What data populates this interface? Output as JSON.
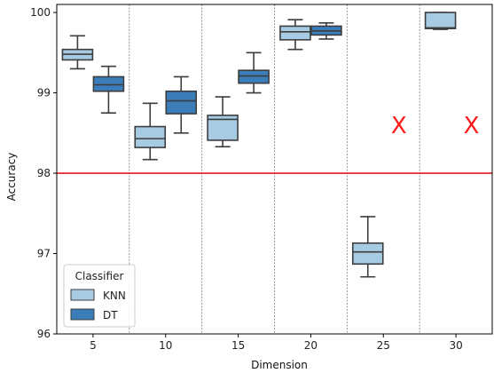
{
  "chart_data": {
    "type": "boxplot",
    "xlabel": "Dimension",
    "ylabel": "Accuracy",
    "categories": [
      "5",
      "10",
      "15",
      "20",
      "25",
      "30"
    ],
    "ylim": [
      96,
      100.1
    ],
    "yticks": [
      96,
      97,
      98,
      99,
      100
    ],
    "legend": {
      "title": "Classifier",
      "position": "lower-left"
    },
    "threshold": {
      "value": 98,
      "color": "#e41a1c"
    },
    "missing_marker": "X",
    "series": [
      {
        "name": "KNN",
        "color": "#a6cbe3",
        "boxes": [
          {
            "whislo": 99.3,
            "q1": 99.41,
            "med": 99.48,
            "q3": 99.54,
            "whishi": 99.71
          },
          {
            "whislo": 98.17,
            "q1": 98.32,
            "med": 98.43,
            "q3": 98.58,
            "whishi": 98.87
          },
          {
            "whislo": 98.33,
            "q1": 98.41,
            "med": 98.67,
            "q3": 98.72,
            "whishi": 98.95
          },
          {
            "whislo": 99.54,
            "q1": 99.66,
            "med": 99.76,
            "q3": 99.83,
            "whishi": 99.91
          },
          {
            "whislo": 96.71,
            "q1": 96.87,
            "med": 97.02,
            "q3": 97.13,
            "whishi": 97.46
          },
          {
            "whislo": 99.79,
            "q1": 99.8,
            "med": 99.81,
            "q3": 100.0,
            "whishi": 100.0
          }
        ]
      },
      {
        "name": "DT",
        "color": "#3b7db8",
        "boxes": [
          {
            "whislo": 98.75,
            "q1": 99.02,
            "med": 99.1,
            "q3": 99.2,
            "whishi": 99.33
          },
          {
            "whislo": 98.5,
            "q1": 98.74,
            "med": 98.9,
            "q3": 99.02,
            "whishi": 99.2
          },
          {
            "whislo": 99.0,
            "q1": 99.12,
            "med": 99.21,
            "q3": 99.28,
            "whishi": 99.5
          },
          {
            "whislo": 99.67,
            "q1": 99.72,
            "med": 99.77,
            "q3": 99.83,
            "whishi": 99.87
          },
          null,
          null
        ]
      }
    ]
  }
}
